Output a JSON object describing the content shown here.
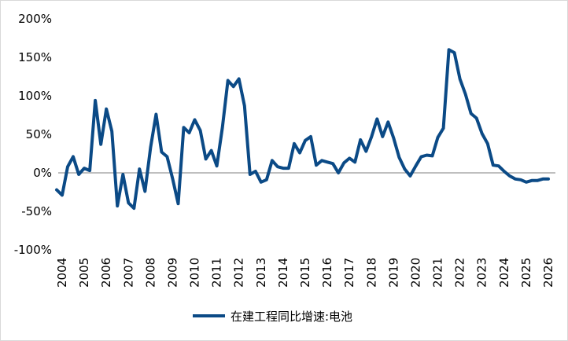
{
  "chart_data": {
    "type": "line",
    "title": "",
    "xlabel": "",
    "ylabel": "",
    "x_ticks": [
      "2004",
      "2005",
      "2006",
      "2007",
      "2008",
      "2009",
      "2010",
      "2011",
      "2012",
      "2013",
      "2014",
      "2015",
      "2016",
      "2017",
      "2018",
      "2019",
      "2020",
      "2021",
      "2022",
      "2023",
      "2024",
      "2025",
      "2026"
    ],
    "y_ticks": [
      "200%",
      "150%",
      "100%",
      "50%",
      "0%",
      "-50%",
      "-100%"
    ],
    "ylim": [
      -100,
      200
    ],
    "xlim": [
      2004,
      2026
    ],
    "grid": false,
    "legend_position": "bottom",
    "series": [
      {
        "name": "在建工程同比增速:电池",
        "color": "#0b4a86",
        "x": [
          2003.75,
          2004.0,
          2004.25,
          2004.5,
          2004.75,
          2005.0,
          2005.25,
          2005.5,
          2005.75,
          2006.0,
          2006.25,
          2006.5,
          2006.75,
          2007.0,
          2007.25,
          2007.5,
          2007.75,
          2008.0,
          2008.25,
          2008.5,
          2008.75,
          2009.0,
          2009.25,
          2009.5,
          2009.75,
          2010.0,
          2010.25,
          2010.5,
          2010.75,
          2011.0,
          2011.25,
          2011.5,
          2011.75,
          2012.0,
          2012.25,
          2012.5,
          2012.75,
          2013.0,
          2013.25,
          2013.5,
          2013.75,
          2014.0,
          2014.25,
          2014.5,
          2014.75,
          2015.0,
          2015.25,
          2015.5,
          2015.75,
          2016.0,
          2016.25,
          2016.5,
          2016.75,
          2017.0,
          2017.25,
          2017.5,
          2017.75,
          2018.0,
          2018.25,
          2018.5,
          2018.75,
          2019.0,
          2019.25,
          2019.5,
          2019.75,
          2020.0,
          2020.25,
          2020.5,
          2020.75,
          2021.0,
          2021.25,
          2021.5,
          2021.75,
          2022.0,
          2022.25,
          2022.5,
          2022.75,
          2023.0,
          2023.25,
          2023.5,
          2023.75,
          2024.0,
          2024.25,
          2024.5,
          2024.75,
          2025.0,
          2025.25,
          2025.5,
          2025.75,
          2026.0
        ],
        "values": [
          -22,
          -29,
          8,
          21,
          -2,
          6,
          3,
          94,
          37,
          83,
          54,
          -43,
          -2,
          -39,
          -46,
          5,
          -24,
          33,
          76,
          27,
          21,
          -8,
          -40,
          59,
          52,
          69,
          55,
          18,
          29,
          9,
          59,
          120,
          112,
          122,
          87,
          -2,
          2,
          -12,
          -9,
          16,
          8,
          6,
          6,
          38,
          26,
          42,
          47,
          10,
          16,
          14,
          12,
          0,
          13,
          19,
          14,
          43,
          28,
          47,
          70,
          47,
          66,
          45,
          20,
          5,
          -4,
          9,
          21,
          23,
          22,
          46,
          58,
          160,
          156,
          122,
          102,
          77,
          71,
          51,
          38,
          10,
          9,
          2,
          -4,
          -8,
          -9,
          -12,
          -10,
          -10,
          -8,
          -8
        ]
      }
    ]
  }
}
